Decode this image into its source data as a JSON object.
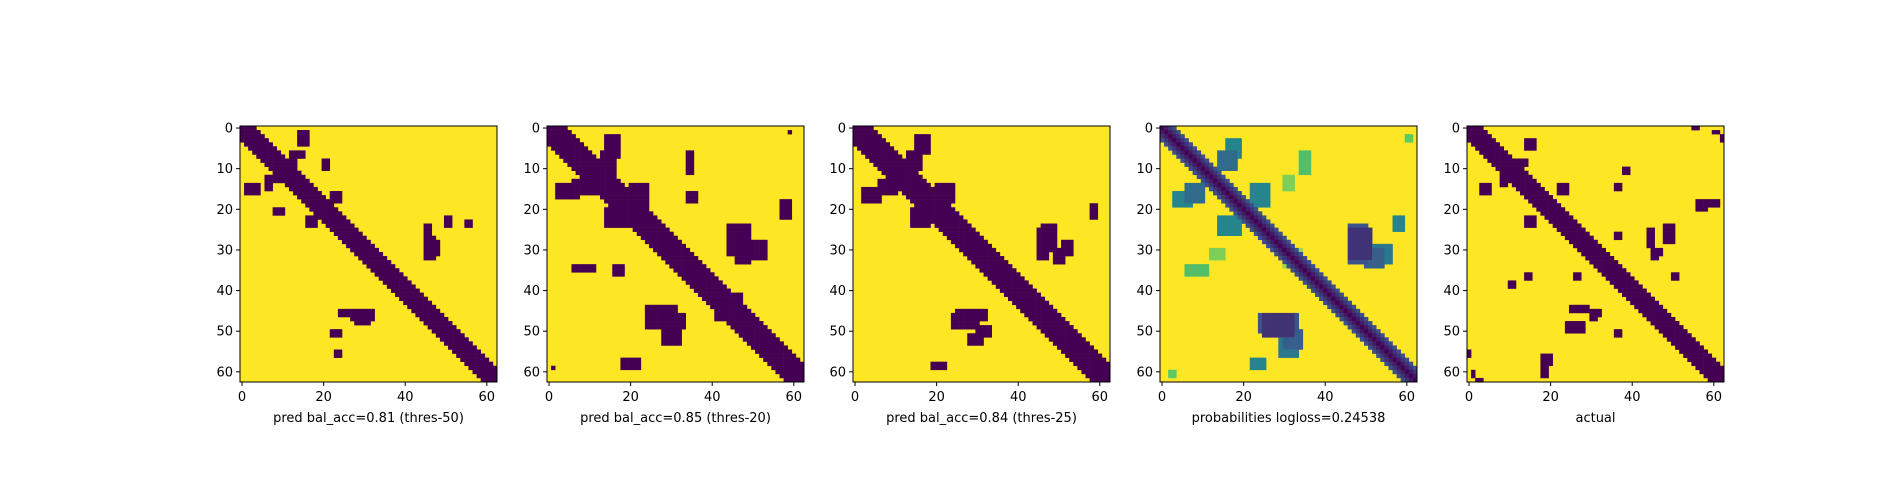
{
  "chart_data": [
    {
      "type": "heatmap",
      "xlabel": "pred bal_acc=0.81 (thres-50)",
      "colormap": "viridis-binary",
      "size": 63,
      "xticks": [
        0,
        20,
        40,
        60
      ],
      "yticks": [
        0,
        10,
        20,
        30,
        40,
        50,
        60
      ],
      "diag_width": 3,
      "blobs": [
        [
          3,
          3,
          4,
          3,
          1
        ],
        [
          8,
          12,
          2,
          2,
          1
        ],
        [
          14,
          1,
          3,
          4,
          1
        ],
        [
          20,
          8,
          2,
          3,
          1
        ],
        [
          22,
          16,
          3,
          3,
          1
        ],
        [
          27,
          45,
          6,
          3,
          1
        ],
        [
          22,
          50,
          3,
          2,
          1
        ],
        [
          45,
          24,
          2,
          7,
          1
        ],
        [
          47,
          28,
          2,
          4,
          1
        ],
        [
          55,
          23,
          2,
          2,
          1
        ],
        [
          12,
          6,
          4,
          2,
          1
        ]
      ]
    },
    {
      "type": "heatmap",
      "xlabel": "pred bal_acc=0.85 (thres-20)",
      "colormap": "viridis-binary",
      "size": 63,
      "xticks": [
        0,
        20,
        40,
        60
      ],
      "yticks": [
        0,
        10,
        20,
        30,
        40,
        50,
        60
      ],
      "diag_width": 4,
      "blobs": [
        [
          6,
          13,
          6,
          4,
          1
        ],
        [
          14,
          2,
          4,
          6,
          1
        ],
        [
          20,
          14,
          5,
          6,
          1
        ],
        [
          24,
          44,
          8,
          5,
          1
        ],
        [
          28,
          50,
          5,
          4,
          1
        ],
        [
          16,
          34,
          3,
          3,
          1
        ],
        [
          46,
          24,
          4,
          10,
          1
        ],
        [
          50,
          28,
          4,
          5,
          1
        ],
        [
          41,
          44,
          4,
          4,
          1
        ],
        [
          57,
          18,
          3,
          5,
          1
        ],
        [
          34,
          6,
          2,
          6,
          1
        ],
        [
          59,
          1,
          1,
          1,
          1
        ]
      ]
    },
    {
      "type": "heatmap",
      "xlabel": "pred bal_acc=0.84 (thres-25)",
      "colormap": "viridis-binary",
      "size": 63,
      "xticks": [
        0,
        20,
        40,
        60
      ],
      "yticks": [
        0,
        10,
        20,
        30,
        40,
        50,
        60
      ],
      "diag_width": 4,
      "blobs": [
        [
          6,
          13,
          5,
          4,
          1
        ],
        [
          15,
          2,
          4,
          5,
          1
        ],
        [
          20,
          14,
          5,
          5,
          1
        ],
        [
          24,
          46,
          7,
          4,
          1
        ],
        [
          28,
          51,
          4,
          3,
          1
        ],
        [
          45,
          25,
          3,
          8,
          1
        ],
        [
          49,
          30,
          3,
          4,
          1
        ],
        [
          58,
          19,
          2,
          4,
          1
        ],
        [
          42,
          44,
          3,
          3,
          1
        ]
      ]
    },
    {
      "type": "heatmap",
      "xlabel": "probabilities logloss=0.24538",
      "colormap": "viridis-continuous",
      "size": 63,
      "xticks": [
        0,
        20,
        40,
        60
      ],
      "yticks": [
        0,
        10,
        20,
        30,
        40,
        50,
        60
      ],
      "diag_width": 3,
      "blobs": [
        [
          6,
          14,
          5,
          5,
          0.65
        ],
        [
          16,
          3,
          4,
          5,
          0.55
        ],
        [
          22,
          14,
          5,
          6,
          0.55
        ],
        [
          25,
          46,
          8,
          6,
          0.85
        ],
        [
          30,
          50,
          5,
          5,
          0.7
        ],
        [
          46,
          24,
          5,
          10,
          0.75
        ],
        [
          52,
          29,
          5,
          5,
          0.6
        ],
        [
          57,
          22,
          3,
          4,
          0.55
        ],
        [
          34,
          6,
          3,
          6,
          0.3
        ],
        [
          2,
          60,
          2,
          2,
          0.25
        ],
        [
          60,
          2,
          2,
          2,
          0.25
        ],
        [
          12,
          30,
          4,
          3,
          0.2
        ],
        [
          32,
          30,
          3,
          3,
          0.15
        ]
      ]
    },
    {
      "type": "heatmap",
      "xlabel": "actual",
      "colormap": "viridis-binary",
      "size": 63,
      "xticks": [
        0,
        20,
        40,
        60
      ],
      "yticks": [
        0,
        10,
        20,
        30,
        40,
        50,
        60
      ],
      "diag_width": 3,
      "blobs": [
        [
          8,
          12,
          2,
          3,
          1
        ],
        [
          14,
          3,
          3,
          3,
          1
        ],
        [
          22,
          14,
          3,
          3,
          1
        ],
        [
          18,
          57,
          2,
          5,
          1
        ],
        [
          24,
          48,
          5,
          3,
          1
        ],
        [
          30,
          45,
          3,
          2,
          1
        ],
        [
          36,
          14,
          2,
          2,
          1
        ],
        [
          36,
          26,
          2,
          2,
          1
        ],
        [
          44,
          25,
          2,
          5,
          1
        ],
        [
          46,
          30,
          2,
          2,
          1
        ],
        [
          56,
          18,
          3,
          3,
          1
        ],
        [
          50,
          36,
          2,
          2,
          1
        ],
        [
          0,
          55,
          1,
          2,
          1
        ],
        [
          2,
          62,
          2,
          1,
          1
        ],
        [
          60,
          1,
          2,
          1,
          1
        ],
        [
          10,
          38,
          2,
          2,
          1
        ]
      ]
    }
  ],
  "colors": {
    "purple": "#440154",
    "yellow": "#fde725",
    "viridis": [
      "#440154",
      "#3b528b",
      "#21918c",
      "#5ec962",
      "#fde725"
    ]
  }
}
